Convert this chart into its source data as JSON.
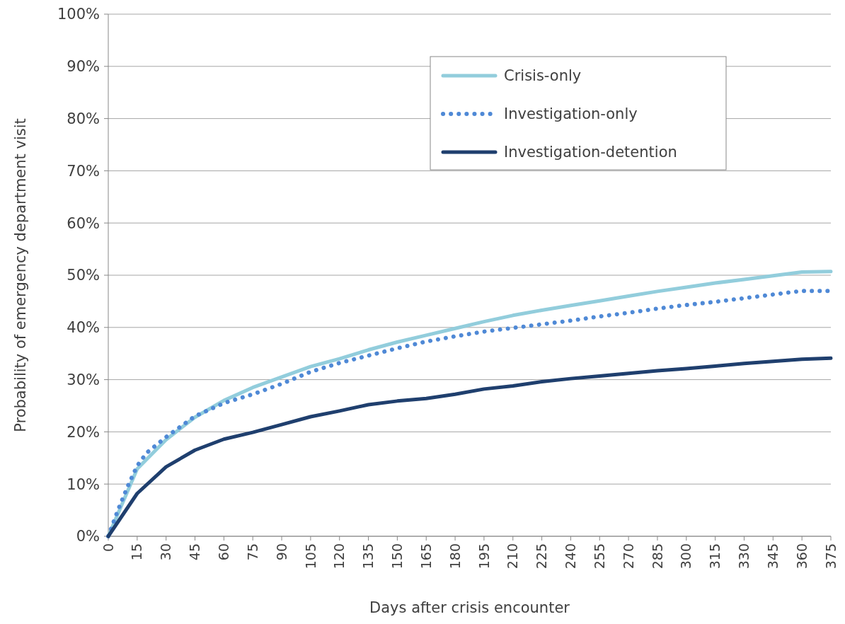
{
  "chart_data": {
    "type": "line",
    "xlabel": "Days after crisis encounter",
    "ylabel": "Probability of emergency department visit",
    "xlim": [
      0,
      375
    ],
    "xticks": [
      0,
      15,
      30,
      45,
      60,
      75,
      90,
      105,
      120,
      135,
      150,
      165,
      180,
      195,
      210,
      225,
      240,
      255,
      270,
      285,
      300,
      315,
      330,
      345,
      360,
      375
    ],
    "ylim": [
      0,
      100
    ],
    "yticks": [
      {
        "value": 0,
        "label": "0%"
      },
      {
        "value": 10,
        "label": "10%"
      },
      {
        "value": 20,
        "label": "20%"
      },
      {
        "value": 30,
        "label": "30%"
      },
      {
        "value": 40,
        "label": "40%"
      },
      {
        "value": 50,
        "label": "50%"
      },
      {
        "value": 60,
        "label": "60%"
      },
      {
        "value": 70,
        "label": "70%"
      },
      {
        "value": 80,
        "label": "80%"
      },
      {
        "value": 90,
        "label": "90%"
      },
      {
        "value": 100,
        "label": "100%"
      }
    ],
    "grid": "y",
    "legend": "top right",
    "marker": "none",
    "series": [
      {
        "name": "Crisis-only",
        "color": "#92cddc",
        "line_style": "solid",
        "x": [
          0,
          15,
          30,
          45,
          60,
          75,
          90,
          105,
          120,
          135,
          150,
          165,
          180,
          195,
          210,
          225,
          240,
          255,
          270,
          285,
          300,
          315,
          330,
          345,
          360,
          375
        ],
        "values": [
          0,
          12.9,
          18.5,
          22.8,
          26,
          28.5,
          30.5,
          32.5,
          34,
          35.7,
          37.2,
          38.5,
          39.8,
          41.1,
          42.3,
          43.3,
          44.2,
          45.1,
          46,
          46.9,
          47.7,
          48.5,
          49.2,
          49.9,
          50.6,
          50.7
        ]
      },
      {
        "name": "Investigation-only",
        "color": "#4f89d6",
        "line_style": "dotted",
        "x": [
          0,
          5,
          10,
          15,
          20,
          30,
          45,
          60,
          75,
          90,
          105,
          120,
          135,
          150,
          165,
          180,
          195,
          210,
          225,
          240,
          255,
          270,
          285,
          300,
          315,
          330,
          345,
          360,
          375
        ],
        "values": [
          0,
          5,
          9.5,
          13.5,
          16,
          19,
          23,
          25.5,
          27.2,
          29.2,
          31.5,
          33.2,
          34.6,
          36,
          37.3,
          38.3,
          39.2,
          39.9,
          40.6,
          41.3,
          42.1,
          42.8,
          43.6,
          44.3,
          44.9,
          45.6,
          46.3,
          47,
          47
        ]
      },
      {
        "name": "Investigation-detention",
        "color": "#1f3f6e",
        "line_style": "solid",
        "x": [
          0,
          15,
          30,
          45,
          60,
          75,
          90,
          105,
          120,
          135,
          150,
          165,
          180,
          195,
          210,
          225,
          240,
          255,
          270,
          285,
          300,
          315,
          330,
          345,
          360,
          375
        ],
        "values": [
          0,
          8.2,
          13.3,
          16.5,
          18.6,
          19.9,
          21.4,
          22.9,
          24,
          25.2,
          25.9,
          26.4,
          27.2,
          28.2,
          28.8,
          29.6,
          30.2,
          30.7,
          31.2,
          31.7,
          32.1,
          32.6,
          33.1,
          33.5,
          33.9,
          34.1
        ]
      }
    ]
  }
}
